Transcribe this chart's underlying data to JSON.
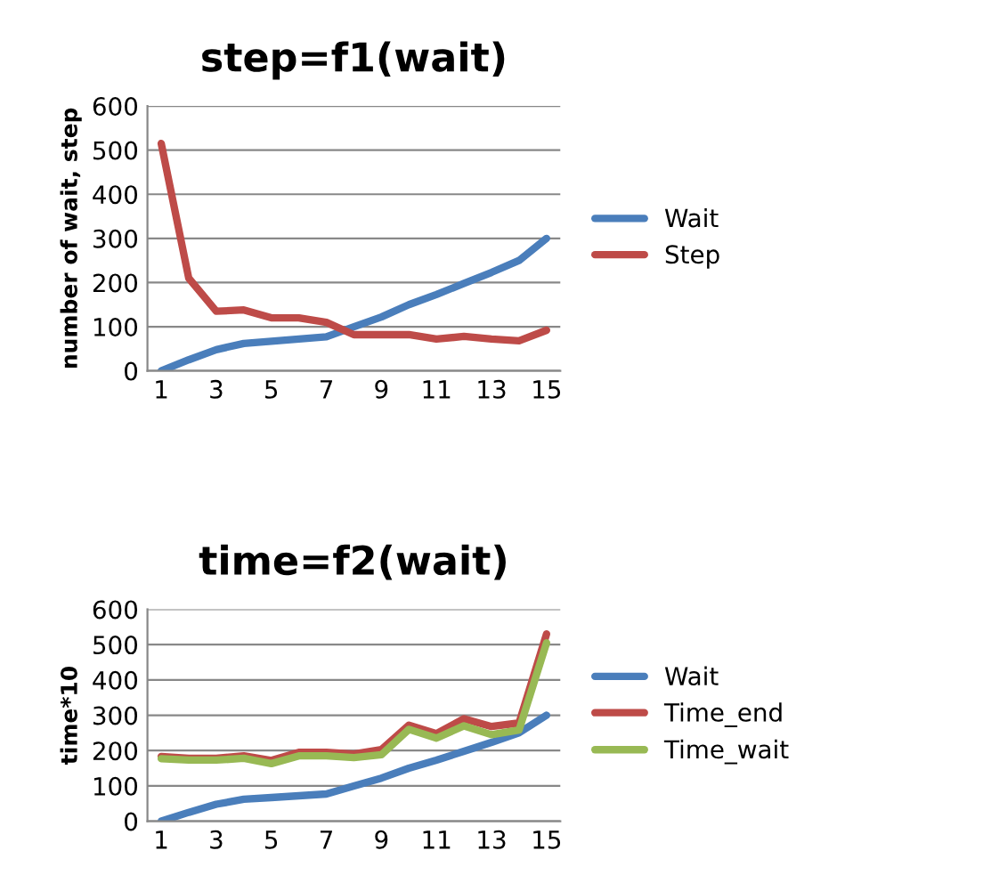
{
  "chart_data": [
    {
      "type": "line",
      "title": "step=f1(wait)",
      "ylabel": "number of wait, step",
      "categories": [
        "1",
        null,
        "3",
        null,
        "5",
        null,
        "7",
        null,
        "9",
        null,
        "11",
        null,
        "13",
        null,
        "15"
      ],
      "ylim": [
        0,
        600
      ],
      "yticks": [
        0,
        100,
        200,
        300,
        400,
        500,
        600
      ],
      "grid": "y",
      "legend": "right",
      "series": [
        {
          "name": "Wait",
          "color": "#4a7ebb",
          "values": [
            0,
            25,
            48,
            62,
            67,
            72,
            77,
            100,
            122,
            150,
            173,
            198,
            223,
            250,
            300
          ]
        },
        {
          "name": "Step",
          "color": "#be4b48",
          "values": [
            515,
            210,
            135,
            138,
            120,
            120,
            110,
            82,
            82,
            82,
            72,
            78,
            72,
            68,
            92
          ]
        }
      ]
    },
    {
      "type": "line",
      "title": "time=f2(wait)",
      "ylabel": "time*10",
      "categories": [
        "1",
        null,
        "3",
        null,
        "5",
        null,
        "7",
        null,
        "9",
        null,
        "11",
        null,
        "13",
        null,
        "15"
      ],
      "ylim": [
        0,
        600
      ],
      "yticks": [
        0,
        100,
        200,
        300,
        400,
        500,
        600
      ],
      "grid": "y",
      "legend": "right",
      "series": [
        {
          "name": "Wait",
          "color": "#4a7ebb",
          "values": [
            0,
            25,
            48,
            62,
            67,
            72,
            77,
            100,
            122,
            150,
            173,
            198,
            223,
            250,
            300
          ]
        },
        {
          "name": "Time_end",
          "color": "#be4b48",
          "values": [
            183,
            178,
            178,
            185,
            172,
            195,
            195,
            190,
            203,
            272,
            248,
            290,
            268,
            278,
            530
          ]
        },
        {
          "name": "Time_wait",
          "color": "#98b954",
          "values": [
            177,
            173,
            173,
            178,
            163,
            185,
            185,
            180,
            188,
            260,
            235,
            270,
            245,
            258,
            505
          ]
        }
      ]
    }
  ]
}
